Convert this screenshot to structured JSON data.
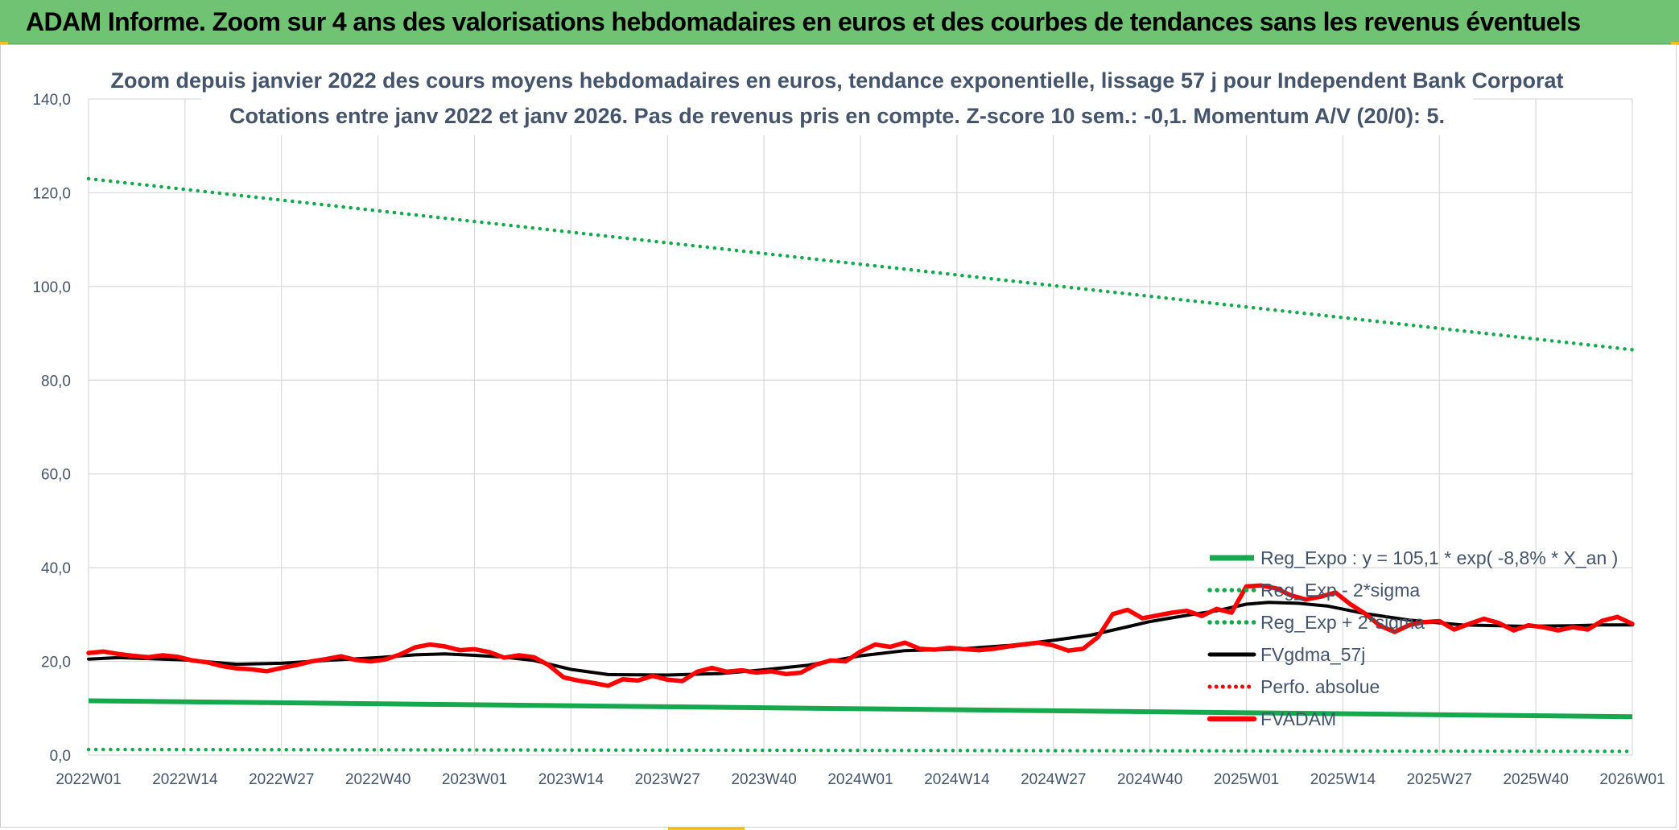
{
  "banner": {
    "title": "ADAM Informe. Zoom sur 4 ans des valorisations hebdomadaires en euros et des courbes de tendances sans les revenus éventuels"
  },
  "colors": {
    "regression": "#16a84d",
    "sigma_bands": "#16a84d",
    "moving_average": "#000000",
    "price": "#ff0000",
    "perf_absolue": "#ff0000",
    "grid": "#d9d9d9",
    "text": "#44546a"
  },
  "chart_data": {
    "type": "line",
    "title_line1": "Zoom depuis janvier 2022 des cours moyens hebdomadaires en euros, tendance exponentielle, lissage 57 j pour Independent Bank Corporat",
    "title_line2": "Cotations entre janv 2022 et janv 2026. Pas de revenus pris en compte. Z-score 10 sem.: -0,1. Momentum A/V (20/0): 5.",
    "x_tick_labels": [
      "2022W01",
      "2022W14",
      "2022W27",
      "2022W40",
      "2023W01",
      "2023W14",
      "2023W27",
      "2023W40",
      "2024W01",
      "2024W14",
      "2024W27",
      "2024W40",
      "2025W01",
      "2025W14",
      "2025W27",
      "2025W40",
      "2026W01"
    ],
    "y_tick_labels": [
      "0,0",
      "20,0",
      "40,0",
      "60,0",
      "80,0",
      "100,0",
      "120,0",
      "140,0"
    ],
    "ylim": [
      0,
      140
    ],
    "xlim": [
      0,
      208
    ],
    "grid": true,
    "legend_position": "bottom-right",
    "series": [
      {
        "name": "Reg_Expo : y = 105,1 * exp( -8,8% *  X_an )",
        "style": "solid-thick",
        "x": [
          0,
          208
        ],
        "values": [
          11.6,
          8.2
        ]
      },
      {
        "name": "Reg_Exp - 2*sigma",
        "style": "dotted",
        "x": [
          0,
          208
        ],
        "values": [
          1.2,
          0.8
        ]
      },
      {
        "name": "Reg_Exp + 2*sigma",
        "style": "dotted",
        "x": [
          0,
          208
        ],
        "values": [
          123.0,
          86.5
        ]
      },
      {
        "name": "FVgdma_57j",
        "style": "solid",
        "x": [
          0,
          4,
          8,
          13,
          20,
          26,
          32,
          39,
          44,
          48,
          52,
          56,
          60,
          65,
          70,
          78,
          85,
          91,
          97,
          104,
          110,
          117,
          124,
          130,
          135,
          140,
          143,
          146,
          149,
          152,
          156,
          159,
          163,
          167,
          172,
          178,
          185,
          193,
          200,
          204,
          208
        ],
        "values": [
          20.5,
          20.8,
          20.6,
          20.3,
          19.4,
          19.6,
          20.2,
          20.8,
          21.4,
          21.6,
          21.3,
          20.9,
          20.2,
          18.3,
          17.2,
          17.1,
          17.4,
          18.2,
          19.2,
          21.2,
          22.3,
          22.6,
          23.4,
          24.5,
          25.6,
          27.4,
          28.5,
          29.3,
          30.1,
          30.8,
          32.2,
          32.6,
          32.4,
          31.8,
          30.2,
          28.8,
          27.8,
          27.5,
          27.6,
          27.8,
          27.8
        ]
      },
      {
        "name": "Perfo. absolue",
        "style": "dotted",
        "x": [],
        "values": []
      },
      {
        "name": "FVADAM",
        "style": "solid-thick",
        "x": [
          0,
          2,
          4,
          6,
          8,
          10,
          12,
          14,
          16,
          18,
          20,
          22,
          24,
          26,
          28,
          30,
          32,
          34,
          36,
          38,
          40,
          42,
          44,
          46,
          48,
          50,
          52,
          54,
          56,
          58,
          60,
          62,
          64,
          66,
          68,
          70,
          72,
          74,
          76,
          78,
          80,
          82,
          84,
          86,
          88,
          90,
          92,
          94,
          96,
          98,
          100,
          102,
          104,
          106,
          108,
          110,
          112,
          114,
          116,
          118,
          120,
          122,
          124,
          126,
          128,
          130,
          132,
          134,
          136,
          138,
          140,
          142,
          144,
          146,
          148,
          150,
          152,
          154,
          156,
          158,
          160,
          162,
          164,
          166,
          168,
          170,
          172,
          174,
          176,
          178,
          180,
          182,
          184,
          186,
          188,
          190,
          192,
          194,
          196,
          198,
          200,
          202,
          204,
          206,
          208
        ],
        "values": [
          21.8,
          22.1,
          21.6,
          21.2,
          20.9,
          21.3,
          21.0,
          20.2,
          19.8,
          19.0,
          18.5,
          18.3,
          17.9,
          18.6,
          19.2,
          20.0,
          20.5,
          21.1,
          20.3,
          20.0,
          20.4,
          21.5,
          23.0,
          23.6,
          23.2,
          22.4,
          22.6,
          22.0,
          20.8,
          21.3,
          20.9,
          19.2,
          16.6,
          15.9,
          15.4,
          14.8,
          16.2,
          15.9,
          16.9,
          16.1,
          15.8,
          17.8,
          18.6,
          17.8,
          18.1,
          17.6,
          17.9,
          17.3,
          17.6,
          19.3,
          20.2,
          20.0,
          22.1,
          23.6,
          23.1,
          24.0,
          22.7,
          22.5,
          22.9,
          22.6,
          22.4,
          22.7,
          23.2,
          23.6,
          24.0,
          23.4,
          22.3,
          22.7,
          25.2,
          30.1,
          31.0,
          29.2,
          29.8,
          30.4,
          30.8,
          29.7,
          31.2,
          30.4,
          36.0,
          36.2,
          35.6,
          34.1,
          33.2,
          33.8,
          34.7,
          32.2,
          30.2,
          27.6,
          26.3,
          27.8,
          28.4,
          28.6,
          26.8,
          28.0,
          29.1,
          28.2,
          26.6,
          27.7,
          27.3,
          26.6,
          27.3,
          26.8,
          28.7,
          29.5,
          28.0
        ]
      }
    ]
  }
}
